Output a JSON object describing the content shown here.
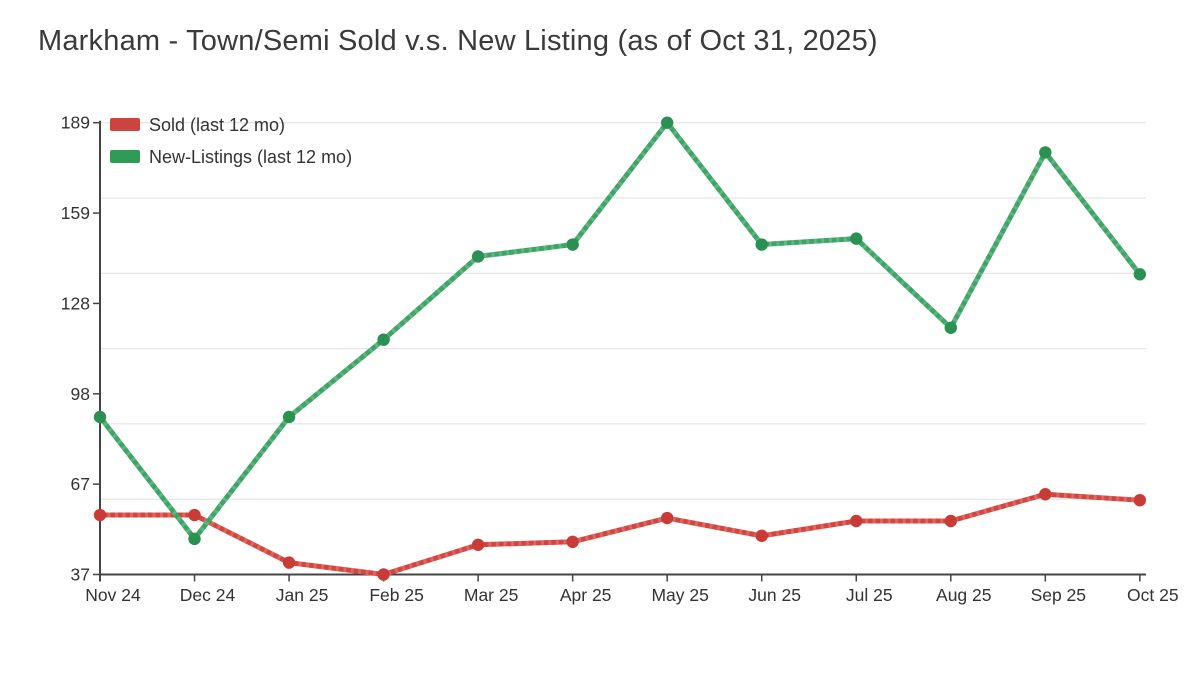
{
  "title": "Markham - Town/Semi Sold v.s. New Listing (as of Oct 31, 2025)",
  "legend": {
    "items": [
      {
        "label": "Sold (last 12 mo)",
        "color": "#cb4540"
      },
      {
        "label": "New-Listings (last 12 mo)",
        "color": "#2f9b57"
      }
    ]
  },
  "chart_data": {
    "type": "line",
    "title": "Markham - Town/Semi Sold v.s. New Listing (as of Oct 31, 2025)",
    "categories": [
      "Nov 24",
      "Dec 24",
      "Jan 25",
      "Feb 25",
      "Mar 25",
      "Apr 25",
      "May 25",
      "Jun 25",
      "Jul 25",
      "Aug 25",
      "Sep 25",
      "Oct 25"
    ],
    "series": [
      {
        "name": "Sold (last 12 mo)",
        "color": "#d5453f",
        "marker_color": "#c83b37",
        "values": [
          57,
          57,
          41,
          37,
          47,
          48,
          56,
          50,
          55,
          55,
          64,
          62
        ]
      },
      {
        "name": "New-Listings (last 12 mo)",
        "color": "#3ca465",
        "marker_color": "#2b9153",
        "values": [
          90,
          49,
          90,
          116,
          144,
          148,
          189,
          148,
          150,
          120,
          179,
          138
        ]
      }
    ],
    "ylim": [
      37,
      189
    ],
    "yticks": {
      "values": [
        37,
        67.4,
        97.8,
        128.2,
        158.6,
        189
      ],
      "labels": [
        "37",
        "67",
        "98",
        "128",
        "159",
        "189"
      ]
    },
    "grid": {
      "on": true,
      "divisions": 6,
      "color": "#e7e7e7"
    },
    "axis_color": "#444444",
    "text_color": "#333333",
    "legend_position": "top-left-inside",
    "xlabel": "",
    "ylabel": ""
  }
}
